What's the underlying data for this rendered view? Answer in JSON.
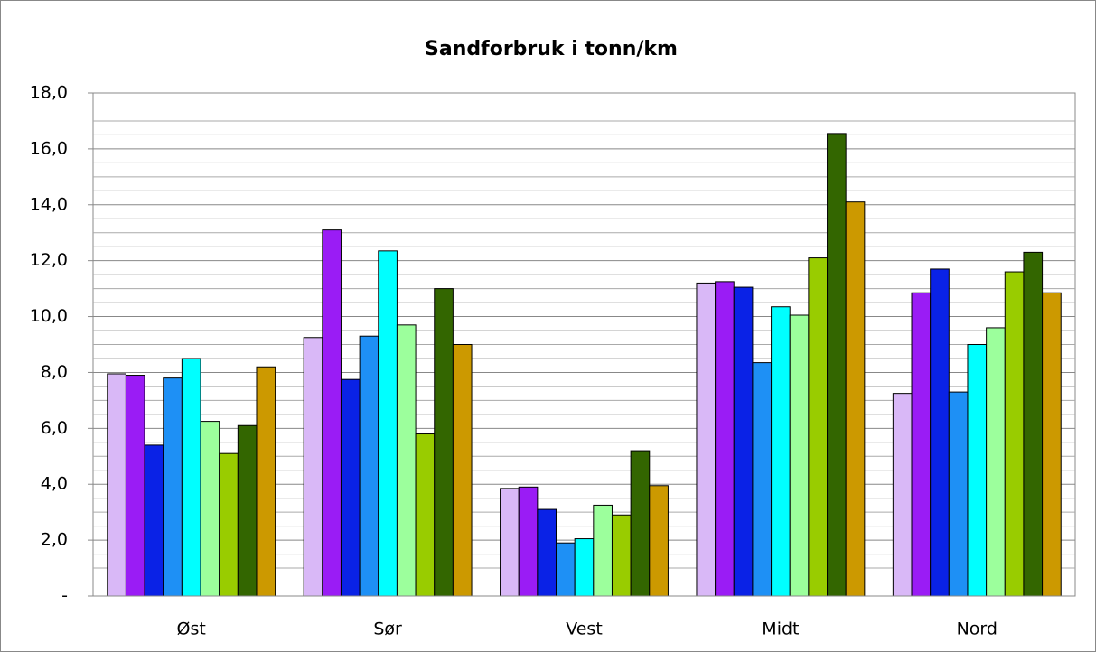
{
  "chart_data": {
    "type": "bar",
    "title": "Sandforbruk i tonn/km",
    "categories": [
      "Øst",
      "Sør",
      "Vest",
      "Midt",
      "Nord"
    ],
    "series": [
      {
        "color": "#d9b8f7",
        "values": [
          7.95,
          9.25,
          3.85,
          11.2,
          7.25
        ]
      },
      {
        "color": "#9a1cf5",
        "values": [
          7.9,
          13.1,
          3.9,
          11.25,
          10.85
        ]
      },
      {
        "color": "#0a22e6",
        "values": [
          5.4,
          7.75,
          3.1,
          11.05,
          11.7
        ]
      },
      {
        "color": "#1e90f5",
        "values": [
          7.8,
          9.3,
          1.9,
          8.35,
          7.3
        ]
      },
      {
        "color": "#00ffff",
        "values": [
          8.5,
          12.35,
          2.05,
          10.35,
          9.0
        ]
      },
      {
        "color": "#9cff9c",
        "values": [
          6.25,
          9.7,
          3.25,
          10.05,
          9.6
        ]
      },
      {
        "color": "#99cc00",
        "values": [
          5.1,
          5.8,
          2.9,
          12.1,
          11.6
        ]
      },
      {
        "color": "#336600",
        "values": [
          6.1,
          11.0,
          5.2,
          16.55,
          12.3
        ]
      },
      {
        "color": "#cc9900",
        "values": [
          8.2,
          9.0,
          3.95,
          14.1,
          10.85
        ]
      }
    ],
    "ylim": [
      0,
      18
    ],
    "yticks": [
      {
        "value": 0,
        "label": "-"
      },
      {
        "value": 2,
        "label": "2,0"
      },
      {
        "value": 4,
        "label": "4,0"
      },
      {
        "value": 6,
        "label": "6,0"
      },
      {
        "value": 8,
        "label": "8,0"
      },
      {
        "value": 10,
        "label": "10,0"
      },
      {
        "value": 12,
        "label": "12,0"
      },
      {
        "value": 14,
        "label": "14,0"
      },
      {
        "value": 16,
        "label": "16,0"
      },
      {
        "value": 18,
        "label": "18,0"
      }
    ],
    "grid": true,
    "minor_grid": true
  }
}
